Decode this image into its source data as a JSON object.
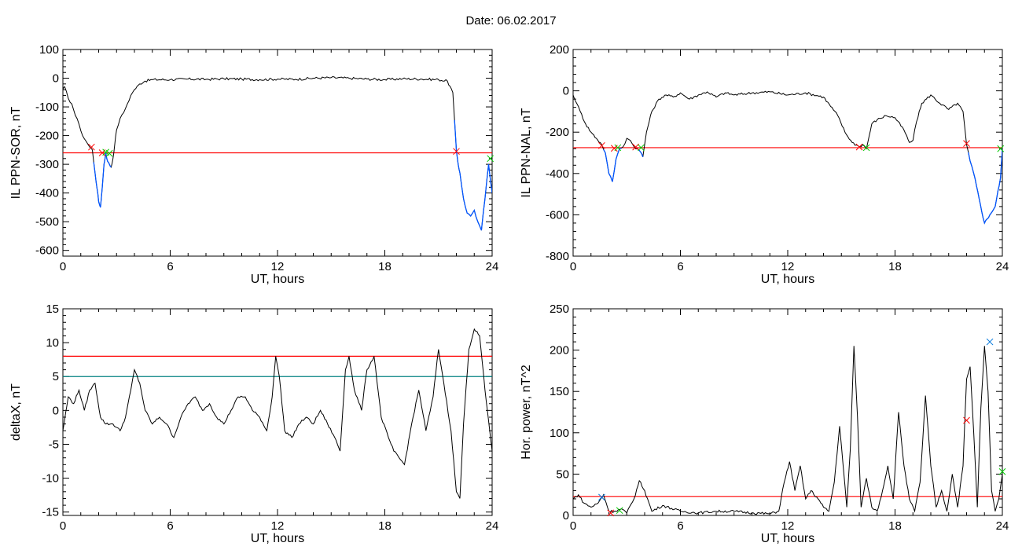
{
  "title": "Date:  06.02.2017",
  "colors": {
    "trace": "#000000",
    "threshold_red": "#ff0000",
    "threshold_teal": "#008080",
    "highlight_blue": "#0055ff",
    "marker_red": "#ff0000",
    "marker_green": "#00cc00",
    "marker_blue": "#0077dd"
  },
  "chart_data": [
    {
      "type": "line",
      "xlabel": "UT, hours",
      "ylabel": "IL PPN-SOR, nT",
      "xlim": [
        0,
        24
      ],
      "ylim": [
        -620,
        100
      ],
      "xticks": [
        0,
        6,
        12,
        18,
        24
      ],
      "yticks": [
        100,
        0,
        -100,
        -200,
        -300,
        -400,
        -500,
        -600
      ],
      "threshold_lines": [
        {
          "y": -260,
          "color": "red"
        }
      ],
      "series": [
        {
          "x": [
            0,
            0.1,
            0.3,
            0.5,
            0.7,
            0.9,
            1.1,
            1.3,
            1.5,
            1.65,
            1.8,
            1.9,
            2.0,
            2.1,
            2.2,
            2.3,
            2.4,
            2.5,
            2.6,
            2.7,
            2.8,
            2.9,
            3.0,
            3.2,
            3.4,
            3.6,
            3.8,
            4.0,
            4.3,
            4.6,
            5,
            6,
            7,
            8,
            9,
            10,
            11,
            12,
            13,
            14,
            15,
            16,
            17,
            18,
            19,
            20,
            21,
            21.5,
            21.8,
            22.0,
            22.1,
            22.2,
            22.4,
            22.6,
            22.8,
            23.0,
            23.2,
            23.4,
            23.6,
            23.8,
            24
          ],
          "y": [
            -40,
            -30,
            -70,
            -90,
            -130,
            -160,
            -200,
            -220,
            -240,
            -250,
            -330,
            -380,
            -430,
            -450,
            -380,
            -300,
            -260,
            -290,
            -300,
            -310,
            -280,
            -230,
            -180,
            -140,
            -120,
            -90,
            -60,
            -40,
            -20,
            -10,
            -5,
            -5,
            -3,
            -4,
            -2,
            -3,
            -5,
            -3,
            -4,
            0,
            2,
            0,
            -3,
            -5,
            -2,
            -3,
            -5,
            -10,
            -50,
            -250,
            -300,
            -330,
            -420,
            -470,
            -480,
            -460,
            -500,
            -530,
            -420,
            -300,
            -400
          ]
        }
      ],
      "highlight_segments": [
        {
          "x": [
            1.7,
            2.7
          ],
          "color": "blue"
        },
        {
          "x": [
            21.9,
            24
          ],
          "color": "blue"
        }
      ],
      "markers": [
        {
          "x": 1.6,
          "y": -240,
          "color": "red"
        },
        {
          "x": 2.2,
          "y": -260,
          "color": "red"
        },
        {
          "x": 2.4,
          "y": -258,
          "color": "green"
        },
        {
          "x": 2.6,
          "y": -262,
          "color": "green"
        },
        {
          "x": 22.0,
          "y": -255,
          "color": "red"
        },
        {
          "x": 23.9,
          "y": -280,
          "color": "green"
        }
      ]
    },
    {
      "type": "line",
      "xlabel": "UT, hours",
      "ylabel": "IL PPN-NAL, nT",
      "xlim": [
        0,
        24
      ],
      "ylim": [
        -800,
        200
      ],
      "xticks": [
        0,
        6,
        12,
        18,
        24
      ],
      "yticks": [
        200,
        0,
        -200,
        -400,
        -600,
        -800
      ],
      "threshold_lines": [
        {
          "y": -275,
          "color": "red"
        }
      ],
      "series": [
        {
          "x": [
            0,
            0.2,
            0.4,
            0.7,
            1.0,
            1.3,
            1.6,
            1.8,
            2.0,
            2.2,
            2.4,
            2.6,
            2.8,
            3.0,
            3.2,
            3.4,
            3.6,
            3.8,
            3.9,
            4.1,
            4.4,
            4.8,
            5.2,
            5.6,
            6,
            6.5,
            7,
            7.5,
            8,
            8.5,
            9,
            10,
            11,
            12,
            13,
            14,
            14.8,
            15.2,
            15.6,
            16.0,
            16.2,
            16.4,
            16.7,
            17.0,
            17.5,
            18.0,
            18.5,
            18.8,
            19.0,
            19.2,
            19.5,
            20,
            20.5,
            21,
            21.5,
            21.8,
            22.0,
            22.2,
            22.4,
            22.7,
            23.0,
            23.3,
            23.6,
            23.9,
            24
          ],
          "y": [
            -20,
            -60,
            -100,
            -160,
            -200,
            -230,
            -260,
            -300,
            -400,
            -440,
            -330,
            -280,
            -270,
            -230,
            -240,
            -270,
            -280,
            -300,
            -320,
            -200,
            -100,
            -40,
            -20,
            -30,
            -10,
            -40,
            -20,
            -5,
            -30,
            -10,
            -20,
            -10,
            -5,
            -20,
            -10,
            -30,
            -120,
            -200,
            -250,
            -270,
            -260,
            -280,
            -160,
            -140,
            -120,
            -130,
            -190,
            -250,
            -240,
            -150,
            -60,
            -20,
            -60,
            -90,
            -60,
            -100,
            -260,
            -340,
            -400,
            -520,
            -640,
            -600,
            -560,
            -420,
            -280
          ]
        }
      ],
      "highlight_segments": [
        {
          "x": [
            1.7,
            2.7
          ],
          "color": "blue"
        },
        {
          "x": [
            3.6,
            3.9
          ],
          "color": "blue"
        },
        {
          "x": [
            22.1,
            24
          ],
          "color": "blue"
        }
      ],
      "markers": [
        {
          "x": 1.6,
          "y": -265,
          "color": "red"
        },
        {
          "x": 2.3,
          "y": -278,
          "color": "red"
        },
        {
          "x": 2.5,
          "y": -275,
          "color": "green"
        },
        {
          "x": 3.5,
          "y": -272,
          "color": "red"
        },
        {
          "x": 3.8,
          "y": -275,
          "color": "green"
        },
        {
          "x": 16.0,
          "y": -272,
          "color": "red"
        },
        {
          "x": 16.4,
          "y": -275,
          "color": "green"
        },
        {
          "x": 22.0,
          "y": -255,
          "color": "red"
        },
        {
          "x": 23.9,
          "y": -280,
          "color": "green"
        }
      ]
    },
    {
      "type": "line",
      "xlabel": "UT, hours",
      "ylabel": "deltaX, nT",
      "xlim": [
        0,
        24
      ],
      "ylim": [
        -15.5,
        15
      ],
      "xticks": [
        0,
        6,
        12,
        18,
        24
      ],
      "yticks": [
        15,
        10,
        5,
        0,
        -5,
        -10,
        -15
      ],
      "threshold_lines": [
        {
          "y": 8,
          "color": "red"
        },
        {
          "y": 5,
          "color": "teal"
        }
      ],
      "series": [
        {
          "x": [
            0,
            0.3,
            0.6,
            0.9,
            1.2,
            1.5,
            1.8,
            2.1,
            2.4,
            2.8,
            3.2,
            3.5,
            3.8,
            4.0,
            4.3,
            4.6,
            5.0,
            5.4,
            5.8,
            6.2,
            6.6,
            7.0,
            7.4,
            7.8,
            8.2,
            8.6,
            9.0,
            9.4,
            9.8,
            10.2,
            10.6,
            11.0,
            11.4,
            11.7,
            11.9,
            12.1,
            12.4,
            12.8,
            13.2,
            13.6,
            14.0,
            14.4,
            14.8,
            15.2,
            15.5,
            15.8,
            16.0,
            16.3,
            16.7,
            17.0,
            17.4,
            17.8,
            18.2,
            18.5,
            18.8,
            19.1,
            19.5,
            19.9,
            20.3,
            20.7,
            21.0,
            21.3,
            21.7,
            22.0,
            22.2,
            22.4,
            22.7,
            23.0,
            23.3,
            23.6,
            24
          ],
          "y": [
            -3,
            2,
            1,
            3,
            0,
            3,
            4,
            -1,
            -2,
            -2,
            -3,
            -1,
            3,
            6,
            4,
            0,
            -2,
            -1,
            -2,
            -4,
            -1,
            1,
            2,
            0,
            1,
            -1,
            -2,
            0,
            2,
            2,
            0,
            -1,
            -3,
            2,
            8,
            5,
            -3,
            -4,
            -2,
            -1,
            -2,
            0,
            -2,
            -4,
            -6,
            6,
            8,
            3,
            0,
            6,
            8,
            -1,
            -4,
            -6,
            -7,
            -8,
            -2,
            3,
            -3,
            2,
            9,
            4,
            -3,
            -12,
            -13,
            -2,
            9,
            12,
            11,
            3,
            -6
          ]
        }
      ],
      "highlight_segments": [],
      "markers": []
    },
    {
      "type": "line",
      "xlabel": "UT, hours",
      "ylabel": "Hor. power, nT^2",
      "xlim": [
        0,
        24
      ],
      "ylim": [
        0,
        250
      ],
      "xticks": [
        0,
        6,
        12,
        18,
        24
      ],
      "yticks": [
        250,
        200,
        150,
        100,
        50,
        0
      ],
      "threshold_lines": [
        {
          "y": 23,
          "color": "red"
        }
      ],
      "series": [
        {
          "x": [
            0,
            0.3,
            0.6,
            1.0,
            1.4,
            1.7,
            2.0,
            2.3,
            2.7,
            3.0,
            3.4,
            3.7,
            4.0,
            4.4,
            5.0,
            6.0,
            7.0,
            8.0,
            9.0,
            10.0,
            11.0,
            11.5,
            11.8,
            12.1,
            12.4,
            12.7,
            13.0,
            13.3,
            13.7,
            14.0,
            14.3,
            14.6,
            14.9,
            15.1,
            15.3,
            15.5,
            15.7,
            15.9,
            16.1,
            16.4,
            16.7,
            17.0,
            17.3,
            17.6,
            17.9,
            18.2,
            18.5,
            18.8,
            19.1,
            19.4,
            19.7,
            20.0,
            20.3,
            20.6,
            20.9,
            21.2,
            21.5,
            21.8,
            22.0,
            22.2,
            22.4,
            22.6,
            22.8,
            23.0,
            23.2,
            23.4,
            23.6,
            23.8,
            24
          ],
          "y": [
            20,
            25,
            15,
            10,
            15,
            25,
            5,
            5,
            8,
            3,
            20,
            42,
            30,
            5,
            12,
            5,
            3,
            5,
            5,
            3,
            2,
            5,
            40,
            65,
            30,
            60,
            20,
            30,
            20,
            10,
            5,
            40,
            108,
            60,
            10,
            80,
            205,
            120,
            10,
            45,
            10,
            5,
            30,
            60,
            20,
            125,
            60,
            20,
            5,
            40,
            145,
            60,
            10,
            30,
            5,
            50,
            10,
            60,
            165,
            180,
            100,
            10,
            130,
            205,
            150,
            30,
            5,
            20,
            50
          ]
        }
      ],
      "highlight_segments": [],
      "markers": [
        {
          "x": 1.6,
          "y": 22,
          "color": "blue"
        },
        {
          "x": 2.1,
          "y": 3,
          "color": "red"
        },
        {
          "x": 2.6,
          "y": 6,
          "color": "green"
        },
        {
          "x": 22.0,
          "y": 115,
          "color": "red"
        },
        {
          "x": 23.3,
          "y": 210,
          "color": "blue"
        },
        {
          "x": 24.0,
          "y": 53,
          "color": "green"
        }
      ]
    }
  ]
}
